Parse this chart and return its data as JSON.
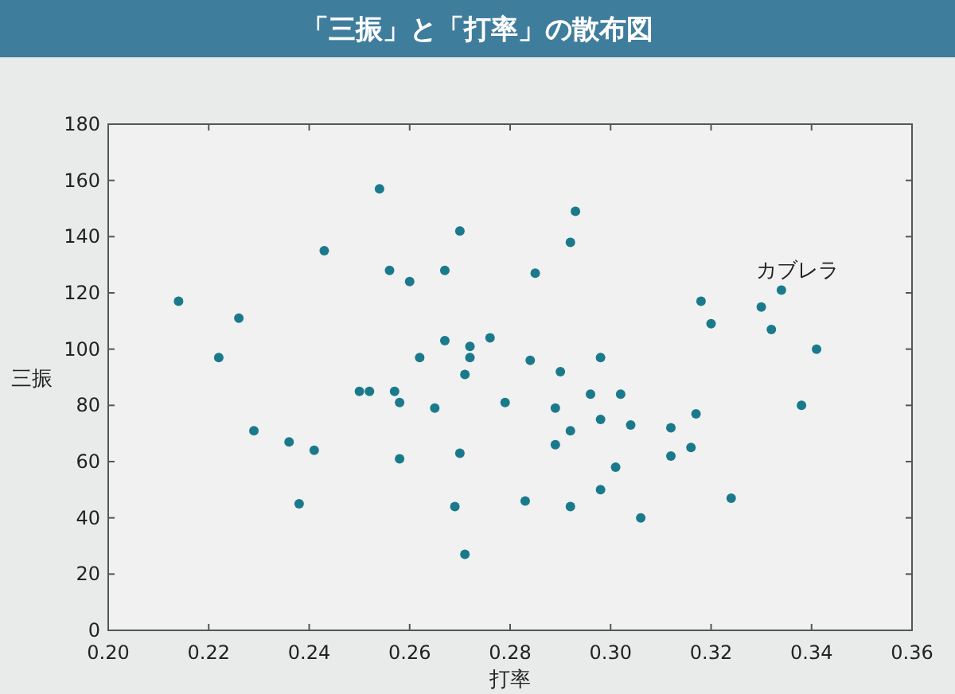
{
  "chart_data": {
    "type": "scatter",
    "title": "「三振」と「打率」の散布図",
    "xlabel": "打率",
    "ylabel": "三振",
    "xlim": [
      0.2,
      0.36
    ],
    "xticks": [
      {
        "value": 0.2,
        "label": "0.20"
      },
      {
        "value": 0.22,
        "label": "0.22"
      },
      {
        "value": 0.24,
        "label": "0.24"
      },
      {
        "value": 0.26,
        "label": "0.26"
      },
      {
        "value": 0.28,
        "label": "0.28"
      },
      {
        "value": 0.3,
        "label": "0.30"
      },
      {
        "value": 0.32,
        "label": "0.32"
      },
      {
        "value": 0.34,
        "label": "0.34"
      },
      {
        "value": 0.36,
        "label": "0.36"
      }
    ],
    "ylim": [
      0,
      180
    ],
    "yticks": [
      0,
      20,
      40,
      60,
      80,
      100,
      120,
      140,
      160,
      180
    ],
    "marker": "circle",
    "color": "#1a7a8c",
    "x": [
      0.214,
      0.222,
      0.226,
      0.229,
      0.236,
      0.238,
      0.241,
      0.243,
      0.254,
      0.25,
      0.252,
      0.256,
      0.257,
      0.258,
      0.258,
      0.26,
      0.262,
      0.265,
      0.267,
      0.267,
      0.269,
      0.27,
      0.27,
      0.271,
      0.271,
      0.272,
      0.272,
      0.276,
      0.279,
      0.283,
      0.284,
      0.285,
      0.289,
      0.289,
      0.29,
      0.292,
      0.292,
      0.293,
      0.292,
      0.296,
      0.298,
      0.298,
      0.298,
      0.301,
      0.302,
      0.304,
      0.306,
      0.312,
      0.312,
      0.316,
      0.317,
      0.318,
      0.32,
      0.324,
      0.33,
      0.332,
      0.334,
      0.338,
      0.341
    ],
    "values": [
      117,
      97,
      111,
      71,
      67,
      45,
      64,
      135,
      157,
      85,
      85,
      128,
      85,
      81,
      61,
      124,
      97,
      79,
      128,
      103,
      44,
      63,
      142,
      27,
      91,
      101,
      97,
      104,
      81,
      46,
      96,
      127,
      79,
      66,
      92,
      71,
      138,
      149,
      44,
      84,
      97,
      75,
      50,
      58,
      84,
      73,
      40,
      72,
      62,
      65,
      77,
      117,
      109,
      47,
      115,
      107,
      121,
      80,
      100
    ],
    "annotations": [
      {
        "text": "カブレラ",
        "x": 0.334,
        "y": 121
      }
    ]
  }
}
